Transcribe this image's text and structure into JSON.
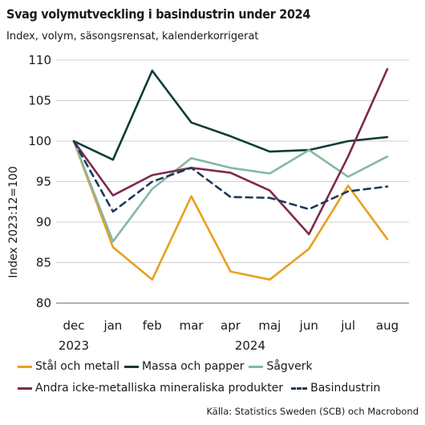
{
  "chart_data": {
    "type": "line",
    "title": "Svag volymutveckling i basindustrin under 2024",
    "subtitle": "Index, volym, säsongsrensat, kalenderkorrigerat",
    "ylabel": "Index 2023:12=100",
    "xlabel": "",
    "categories": [
      "dec",
      "jan",
      "feb",
      "mar",
      "apr",
      "maj",
      "jun",
      "jul",
      "aug"
    ],
    "year_labels": [
      {
        "label": "2023",
        "category_index": 0
      },
      {
        "label": "2024",
        "category_index": 4.5
      }
    ],
    "ylim": [
      80,
      110
    ],
    "yticks": [
      80,
      85,
      90,
      95,
      100,
      105,
      110
    ],
    "grid": "horizontal",
    "legend_position": "bottom",
    "series": [
      {
        "name": "Stål och metall",
        "color": "#e8a01e",
        "dash": false,
        "values": [
          100,
          86.9,
          82.9,
          93.2,
          83.9,
          82.9,
          86.7,
          94.5,
          87.9
        ]
      },
      {
        "name": "Massa och papper",
        "color": "#0f3b3a",
        "dash": false,
        "values": [
          100,
          97.7,
          108.7,
          102.3,
          100.6,
          98.7,
          98.9,
          100.0,
          100.5
        ]
      },
      {
        "name": "Sågverk",
        "color": "#86b6a6",
        "dash": false,
        "values": [
          100,
          87.6,
          94.1,
          97.9,
          96.7,
          96.0,
          98.9,
          95.6,
          98.1
        ]
      },
      {
        "name": "Andra icke-metalliska mineraliska produkter",
        "color": "#7d2a4f",
        "dash": false,
        "values": [
          100,
          93.3,
          95.8,
          96.7,
          96.1,
          93.9,
          88.5,
          98.1,
          108.9
        ]
      },
      {
        "name": "Basindustrin",
        "color": "#1e3a5a",
        "dash": true,
        "values": [
          100,
          91.3,
          95.0,
          96.7,
          93.1,
          93.0,
          91.6,
          93.8,
          94.4
        ]
      }
    ],
    "source": "Källa: Statistics Sweden (SCB) och Macrobond"
  }
}
